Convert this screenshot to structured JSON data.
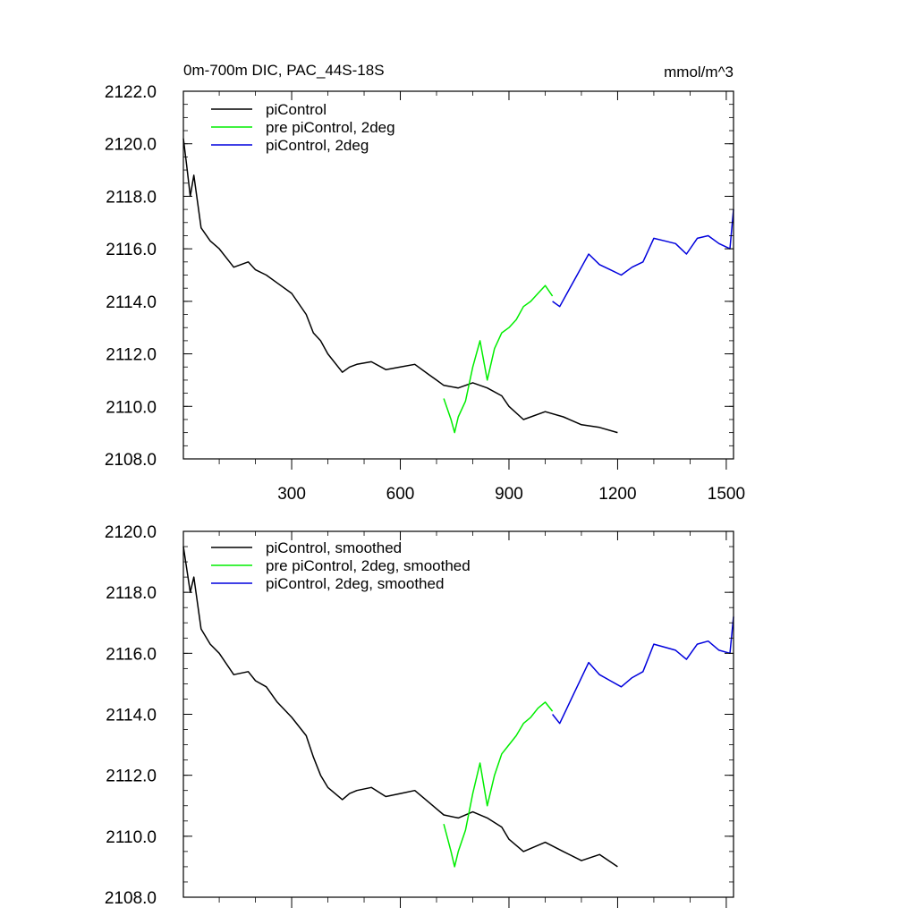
{
  "title_left": "0m-700m DIC, PAC_44S-18S",
  "title_right": "mmol/m^3",
  "colors": {
    "piControl": "#000000",
    "pre_piControl_2deg": "#00ee00",
    "piControl_2deg": "#0000dd"
  },
  "chart_data": [
    {
      "type": "line",
      "panel": "top",
      "title": "0m-700m DIC, PAC_44S-18S",
      "units": "mmol/m^3",
      "xlim": [
        1,
        1520
      ],
      "ylim": [
        2108.0,
        2122.0
      ],
      "x_ticks": [
        300,
        600,
        900,
        1200,
        1500
      ],
      "x_tick_labels": [
        "300",
        "600",
        "900",
        "1200",
        "1500"
      ],
      "y_ticks": [
        2108,
        2110,
        2112,
        2114,
        2116,
        2118,
        2120,
        2122
      ],
      "y_tick_labels": [
        "2108.0",
        "2110.0",
        "2112.0",
        "2114.0",
        "2116.0",
        "2118.0",
        "2120.0",
        "2122.0"
      ],
      "legend_position": "top-left",
      "grid": false,
      "series": [
        {
          "name": "piControl",
          "color": "#000000",
          "x": [
            1,
            10,
            20,
            30,
            50,
            75,
            100,
            140,
            180,
            200,
            230,
            260,
            300,
            340,
            360,
            380,
            400,
            440,
            460,
            480,
            520,
            560,
            600,
            640,
            680,
            700,
            720,
            760,
            800,
            840,
            880,
            900,
            940,
            1000,
            1050,
            1100,
            1150,
            1200
          ],
          "y": [
            2120.2,
            2119.2,
            2118.0,
            2118.8,
            2116.8,
            2116.3,
            2116.0,
            2115.3,
            2115.5,
            2115.2,
            2115.0,
            2114.7,
            2114.3,
            2113.5,
            2112.8,
            2112.5,
            2112.0,
            2111.3,
            2111.5,
            2111.6,
            2111.7,
            2111.4,
            2111.5,
            2111.6,
            2111.2,
            2111.0,
            2110.8,
            2110.7,
            2110.9,
            2110.7,
            2110.4,
            2110.0,
            2109.5,
            2109.8,
            2109.6,
            2109.3,
            2109.2,
            2109.0
          ]
        },
        {
          "name": "pre piControl, 2deg",
          "color": "#00ee00",
          "x": [
            720,
            740,
            750,
            760,
            780,
            800,
            820,
            840,
            860,
            880,
            900,
            920,
            940,
            960,
            980,
            1000,
            1020
          ],
          "y": [
            2110.3,
            2109.5,
            2109.0,
            2109.6,
            2110.2,
            2111.5,
            2112.5,
            2111.0,
            2112.2,
            2112.8,
            2113.0,
            2113.3,
            2113.8,
            2114.0,
            2114.3,
            2114.6,
            2114.2
          ]
        },
        {
          "name": "piControl, 2deg",
          "color": "#0000dd",
          "x": [
            1020,
            1040,
            1060,
            1080,
            1100,
            1120,
            1150,
            1180,
            1210,
            1240,
            1270,
            1300,
            1330,
            1360,
            1390,
            1420,
            1450,
            1480,
            1510,
            1520
          ],
          "y": [
            2114.0,
            2113.8,
            2114.3,
            2114.8,
            2115.3,
            2115.8,
            2115.4,
            2115.2,
            2115.0,
            2115.3,
            2115.5,
            2116.4,
            2116.3,
            2116.2,
            2115.8,
            2116.4,
            2116.5,
            2116.2,
            2116.0,
            2117.5
          ]
        }
      ]
    },
    {
      "type": "line",
      "panel": "bottom",
      "xlim": [
        1,
        1520
      ],
      "ylim": [
        2108.0,
        2120.0
      ],
      "x_ticks": [
        300,
        600,
        900,
        1200,
        1500
      ],
      "y_ticks": [
        2108,
        2110,
        2112,
        2114,
        2116,
        2118,
        2120
      ],
      "y_tick_labels": [
        "2108.0",
        "2110.0",
        "2112.0",
        "2114.0",
        "2116.0",
        "2118.0",
        "2120.0"
      ],
      "legend_position": "top-left",
      "grid": false,
      "series": [
        {
          "name": "piControl, smoothed",
          "color": "#000000",
          "x": [
            1,
            10,
            20,
            30,
            50,
            75,
            100,
            140,
            180,
            200,
            230,
            260,
            300,
            340,
            360,
            380,
            400,
            440,
            460,
            480,
            520,
            560,
            600,
            640,
            680,
            700,
            720,
            760,
            800,
            840,
            880,
            900,
            940,
            1000,
            1050,
            1100,
            1150,
            1200
          ],
          "y": [
            2119.5,
            2118.8,
            2118.0,
            2118.5,
            2116.8,
            2116.3,
            2116.0,
            2115.3,
            2115.4,
            2115.1,
            2114.9,
            2114.4,
            2113.9,
            2113.3,
            2112.6,
            2112.0,
            2111.6,
            2111.2,
            2111.4,
            2111.5,
            2111.6,
            2111.3,
            2111.4,
            2111.5,
            2111.1,
            2110.9,
            2110.7,
            2110.6,
            2110.8,
            2110.6,
            2110.3,
            2109.9,
            2109.5,
            2109.8,
            2109.5,
            2109.2,
            2109.4,
            2109.0
          ]
        },
        {
          "name": "pre piControl, 2deg, smoothed",
          "color": "#00ee00",
          "x": [
            720,
            740,
            750,
            760,
            780,
            800,
            820,
            840,
            860,
            880,
            900,
            920,
            940,
            960,
            980,
            1000,
            1020
          ],
          "y": [
            2110.4,
            2109.5,
            2109.0,
            2109.5,
            2110.2,
            2111.4,
            2112.4,
            2111.0,
            2112.0,
            2112.7,
            2113.0,
            2113.3,
            2113.7,
            2113.9,
            2114.2,
            2114.4,
            2114.1
          ]
        },
        {
          "name": "piControl, 2deg, smoothed",
          "color": "#0000dd",
          "x": [
            1020,
            1040,
            1060,
            1080,
            1100,
            1120,
            1150,
            1180,
            1210,
            1240,
            1270,
            1300,
            1330,
            1360,
            1390,
            1420,
            1450,
            1480,
            1510,
            1520
          ],
          "y": [
            2114.0,
            2113.7,
            2114.2,
            2114.7,
            2115.2,
            2115.7,
            2115.3,
            2115.1,
            2114.9,
            2115.2,
            2115.4,
            2116.3,
            2116.2,
            2116.1,
            2115.8,
            2116.3,
            2116.4,
            2116.1,
            2116.0,
            2117.2
          ]
        }
      ]
    }
  ]
}
